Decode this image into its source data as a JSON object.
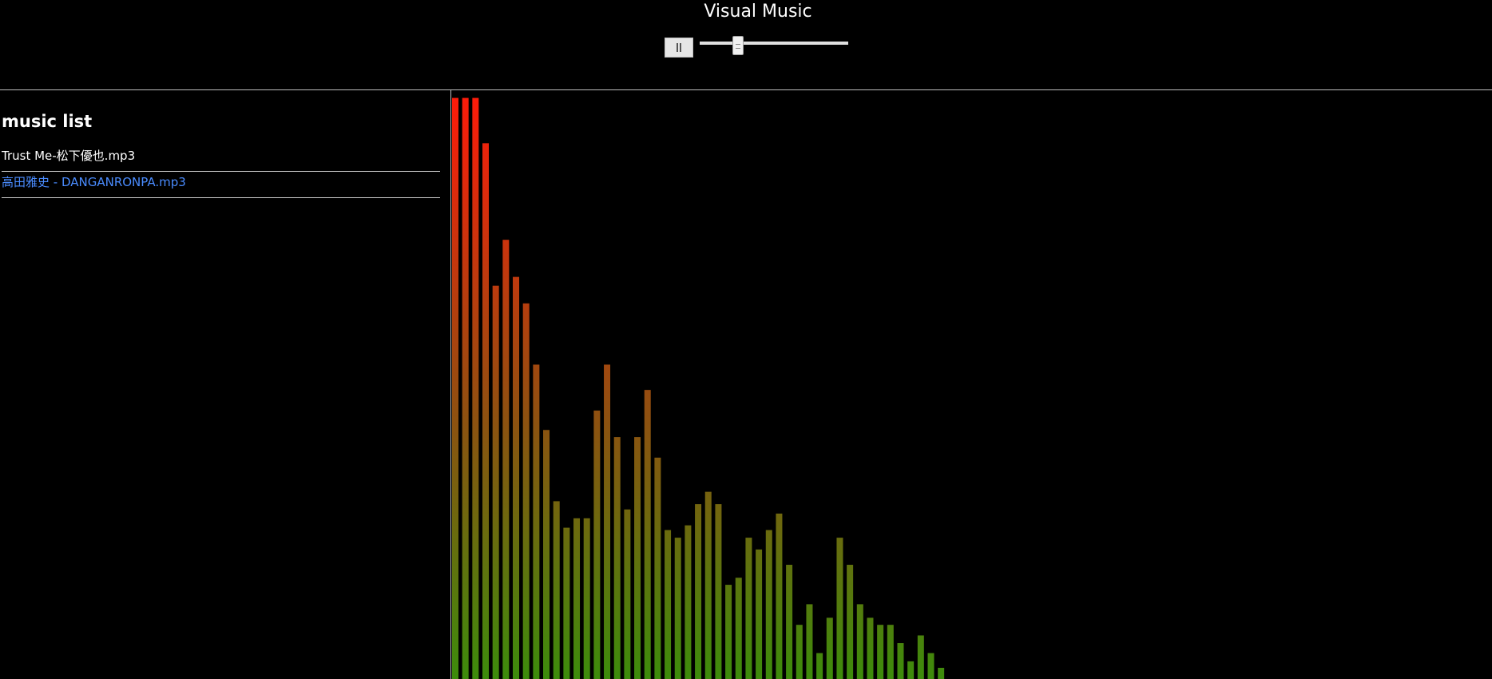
{
  "app": {
    "title": "Visual Music"
  },
  "controls": {
    "play_state": "playing",
    "pause_icon": "pause-icon",
    "volume": 0.24
  },
  "playlist": {
    "heading": "music list",
    "songs": [
      {
        "name": "Trust Me-松下優也.mp3",
        "active": false
      },
      {
        "name": "高田雅史 - DANGANRONPA.mp3",
        "active": true
      }
    ]
  },
  "colors": {
    "background": "#000000",
    "active_song": "#4a8cff",
    "bar_top": "#ff1a0a",
    "bar_bottom": "#3d8c0c"
  },
  "chart_data": {
    "type": "bar",
    "ylim": [
      0,
      100
    ],
    "values": [
      98.7,
      98.7,
      98.7,
      91.0,
      66.8,
      74.6,
      68.3,
      63.8,
      53.4,
      42.3,
      30.2,
      25.7,
      27.3,
      27.3,
      45.6,
      53.4,
      41.1,
      28.8,
      41.1,
      49.1,
      37.6,
      25.3,
      24.0,
      26.1,
      29.7,
      31.8,
      29.7,
      16.0,
      17.2,
      24.0,
      22.0,
      25.3,
      28.1,
      19.4,
      9.2,
      12.7,
      4.4,
      10.4,
      24.0,
      19.4,
      12.7,
      10.4,
      9.2,
      9.2,
      6.1,
      3.0,
      7.4,
      4.4,
      1.9
    ]
  }
}
